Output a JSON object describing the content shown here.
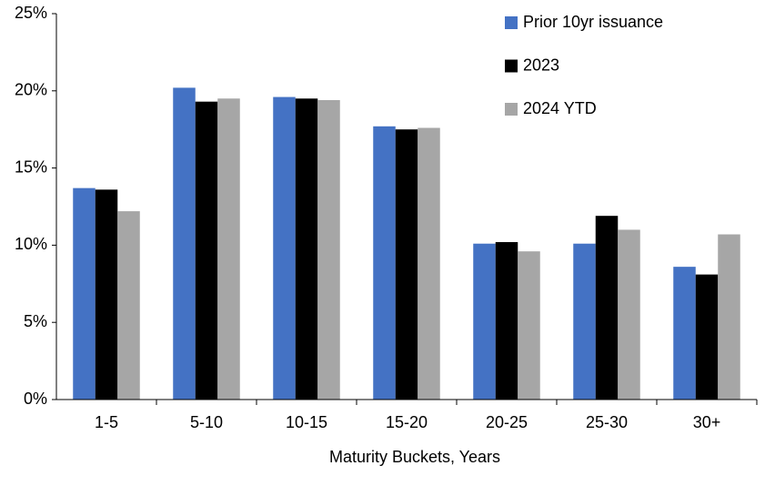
{
  "chart_data": {
    "type": "bar",
    "x_label": "Maturity Buckets, Years",
    "categories": [
      "1-5",
      "5-10",
      "10-15",
      "15-20",
      "20-25",
      "25-30",
      "30+"
    ],
    "series": [
      {
        "name": "Prior 10yr issuance",
        "color": "#4472c4",
        "values": [
          13.7,
          20.2,
          19.6,
          17.7,
          10.1,
          10.1,
          8.6
        ]
      },
      {
        "name": "2023",
        "color": "#000000",
        "values": [
          13.6,
          19.3,
          19.5,
          17.5,
          10.2,
          11.9,
          8.1
        ]
      },
      {
        "name": "2024 YTD",
        "color": "#a6a6a6",
        "values": [
          12.2,
          19.5,
          19.4,
          17.6,
          9.6,
          11.0,
          10.7
        ]
      }
    ],
    "ylim": [
      0,
      25
    ],
    "yticks": [
      {
        "value": 0,
        "label": "0%"
      },
      {
        "value": 5,
        "label": "5%"
      },
      {
        "value": 10,
        "label": "10%"
      },
      {
        "value": 15,
        "label": "15%"
      },
      {
        "value": 20,
        "label": "20%"
      },
      {
        "value": 25,
        "label": "25%"
      }
    ],
    "grid": false,
    "legend": "upper right"
  }
}
